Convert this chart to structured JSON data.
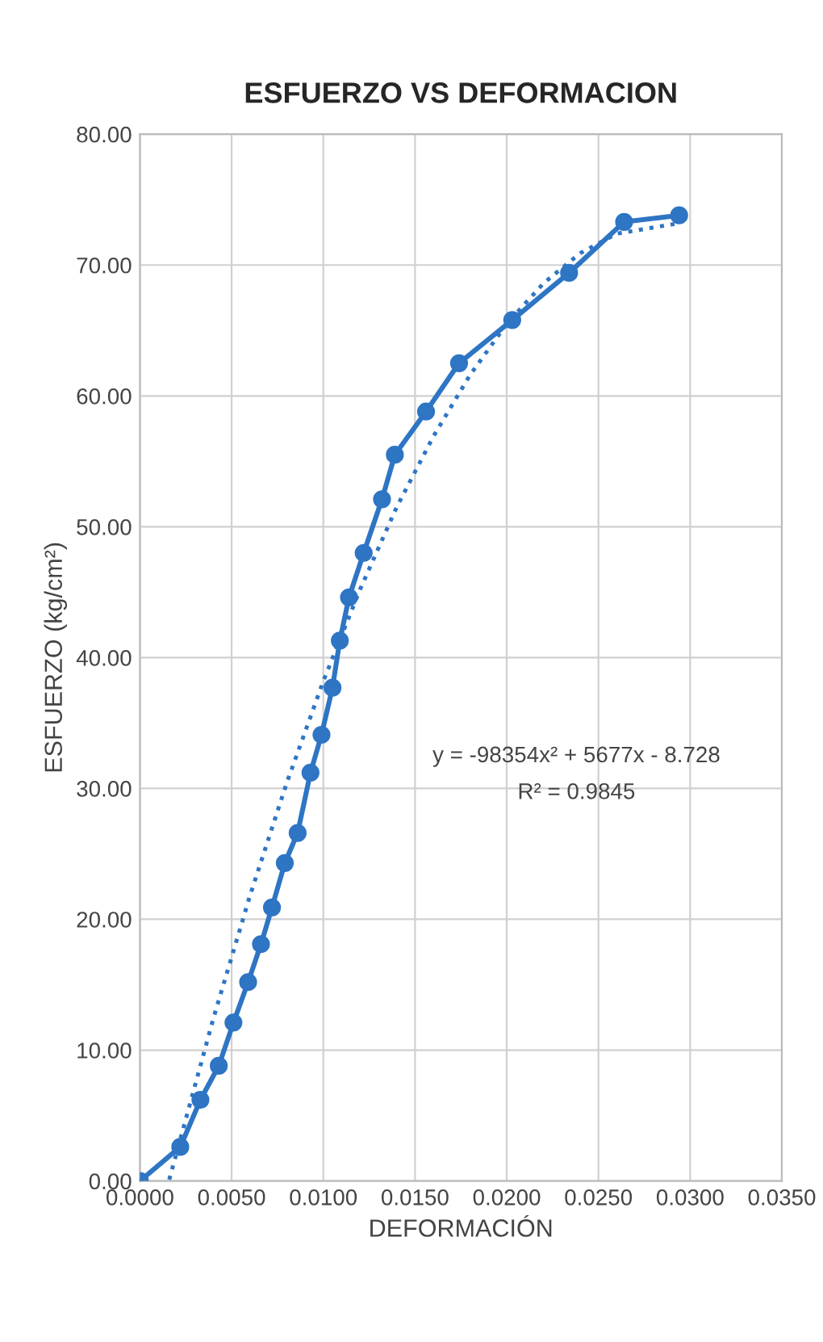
{
  "chart_data": {
    "type": "line",
    "title": "ESFUERZO VS DEFORMACION",
    "xlabel": "DEFORMACIÓN",
    "ylabel": "ESFUERZO (kg/cm²)",
    "series": [
      {
        "color": "#2e75c4",
        "marker": "circle",
        "line_style": "solid",
        "x": [
          0.0,
          0.0022,
          0.0033,
          0.0043,
          0.0051,
          0.0059,
          0.0066,
          0.0072,
          0.0079,
          0.0086,
          0.0093,
          0.0099,
          0.0105,
          0.0109,
          0.0114,
          0.0122,
          0.0132,
          0.0139,
          0.0156,
          0.0174,
          0.0203,
          0.0234,
          0.0264,
          0.0294
        ],
        "values": [
          0.0,
          2.6,
          6.2,
          8.8,
          12.1,
          15.2,
          18.1,
          20.9,
          24.3,
          26.6,
          31.2,
          34.1,
          37.7,
          41.3,
          44.6,
          48.0,
          52.1,
          55.5,
          58.8,
          62.5,
          65.8,
          69.4,
          73.3,
          73.8
        ]
      },
      {
        "color": "#2e75c4",
        "marker": "none",
        "line_style": "dotted",
        "x": [
          0.0016,
          0.004,
          0.006,
          0.008,
          0.01,
          0.012,
          0.014,
          0.016,
          0.018,
          0.02,
          0.022,
          0.024,
          0.026,
          0.0294
        ],
        "values": [
          0.1,
          12.4,
          21.8,
          30.4,
          38.2,
          45.2,
          51.5,
          56.9,
          61.6,
          65.5,
          68.6,
          70.9,
          72.4,
          73.2
        ]
      }
    ],
    "annotations": [
      "y = -98354x² + 5677x - 8.728",
      "R² = 0.9845"
    ],
    "xlim": [
      0,
      0.035
    ],
    "xticks": [
      {
        "value": 0,
        "label": "0.0000"
      },
      {
        "value": 0.005,
        "label": "0.0050"
      },
      {
        "value": 0.01,
        "label": "0.0100"
      },
      {
        "value": 0.015,
        "label": "0.0150"
      },
      {
        "value": 0.02,
        "label": "0.0200"
      },
      {
        "value": 0.025,
        "label": "0.0250"
      },
      {
        "value": 0.03,
        "label": "0.0300"
      },
      {
        "value": 0.035,
        "label": "0.0350"
      }
    ],
    "ylim": [
      0,
      80
    ],
    "yticks": [
      {
        "value": 0,
        "label": "0.00"
      },
      {
        "value": 10,
        "label": "10.00"
      },
      {
        "value": 20,
        "label": "20.00"
      },
      {
        "value": 30,
        "label": "30.00"
      },
      {
        "value": 40,
        "label": "40.00"
      },
      {
        "value": 50,
        "label": "50.00"
      },
      {
        "value": 60,
        "label": "60.00"
      },
      {
        "value": 70,
        "label": "70.00"
      },
      {
        "value": 80,
        "label": "80.00"
      }
    ],
    "grid": true
  }
}
